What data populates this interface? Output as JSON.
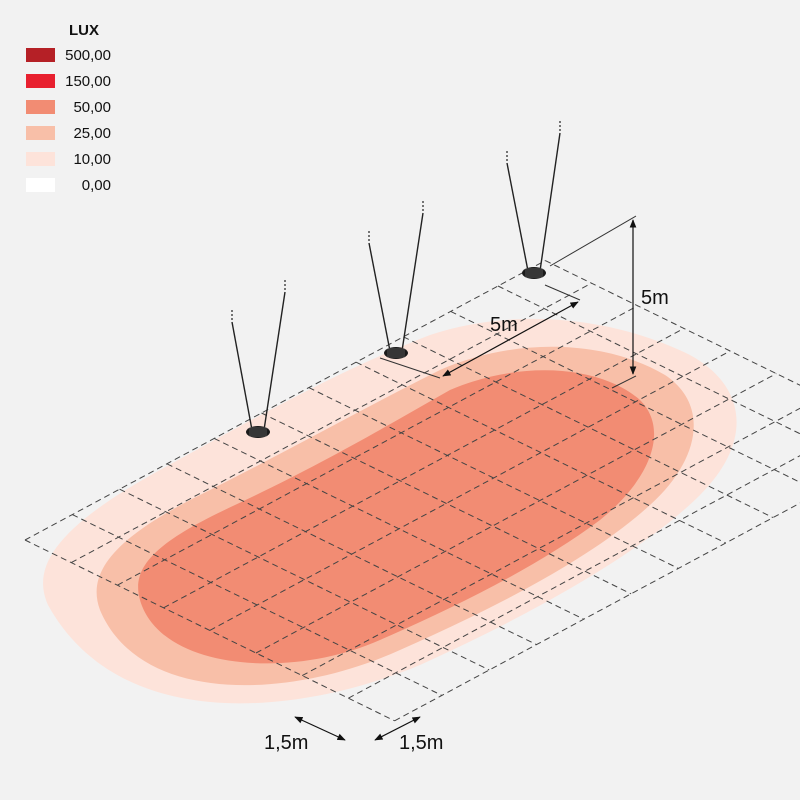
{
  "legend": {
    "title": "LUX",
    "items": [
      {
        "value": "500,00",
        "color": "#b52026"
      },
      {
        "value": "150,00",
        "color": "#e8202f"
      },
      {
        "value": "50,00",
        "color": "#f28c73"
      },
      {
        "value": "25,00",
        "color": "#f8bfa8"
      },
      {
        "value": "10,00",
        "color": "#fde3da"
      },
      {
        "value": "0,00",
        "color": "#ffffff"
      }
    ]
  },
  "dimensions": {
    "lamp_spacing": "5m",
    "lamp_height": "5m",
    "grid_spacing_a": "1,5m",
    "grid_spacing_b": "1,5m"
  }
}
